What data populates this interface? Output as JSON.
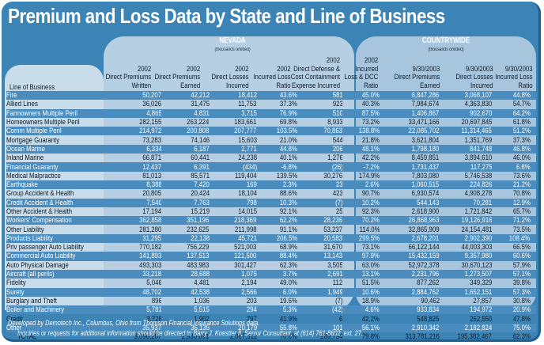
{
  "title": "Premium and Loss Data by State and Line of Business",
  "colors": {
    "frame": "#3b84b5",
    "band": "#4a8cbd",
    "nevada_panel": "#b6cfe2",
    "countrywide_panel": "#a7c5dc",
    "lob_panel": "#c9dcea"
  },
  "groups": {
    "nevada": {
      "label": "NEVADA",
      "sub": "(thousands omitted)"
    },
    "countrywide": {
      "label": "COUNTRYWIDE",
      "sub": "(thousands omitted)"
    }
  },
  "lob_header": "Line of Business",
  "columns": [
    "2002\nDirect Premiums\nWritten",
    "2002\nDirect Premiums\nEarned",
    "2002\nDirect Losses\nIncurred",
    "2002\nIncurred Loss\nRatio",
    "2002\nDirect Defense &\nCost Containment\nExpense Incurred",
    "2002\nIncurred\nLoss & DCC\nRatio",
    "9/30/2003\nDirect Premiums\nEarned",
    "9/30/2003\nDirect Losses\nIncurred",
    "9/30/2003\nIncurred Loss\nRatio"
  ],
  "chart_data": {
    "type": "table",
    "title": "Premium and Loss Data by State and Line of Business",
    "column_groups": [
      {
        "name": "NEVADA (thousands omitted)",
        "columns": [
          "2002 Direct Premiums Written",
          "2002 Direct Premiums Earned",
          "2002 Direct Losses Incurred",
          "2002 Incurred Loss Ratio",
          "2002 Direct Defense & Cost Containment Expense Incurred",
          "2002 Incurred Loss & DCC Ratio"
        ]
      },
      {
        "name": "COUNTRYWIDE (thousands omitted)",
        "columns": [
          "9/30/2003 Direct Premiums Earned",
          "9/30/2003 Direct Losses Incurred",
          "9/30/2003 Incurred Loss Ratio"
        ]
      }
    ],
    "rows": [
      {
        "lob": "Fire",
        "v": [
          "50,207",
          "42,212",
          "18,412",
          "43.6%",
          "581",
          "45.0%",
          "6,847,286",
          "3,068,107",
          "44.8%"
        ]
      },
      {
        "lob": "Allied Lines",
        "v": [
          "36,026",
          "31,475",
          "11,753",
          "37.3%",
          "923",
          "40.3%",
          "7,984,674",
          "4,363,830",
          "54.7%"
        ]
      },
      {
        "lob": "Farmowners Multiple Peril",
        "v": [
          "4,865",
          "4,831",
          "3,715",
          "76.9%",
          "510",
          "87.5%",
          "1,406,867",
          "902,670",
          "64.2%"
        ]
      },
      {
        "lob": "Homeowners Multiple Peril",
        "v": [
          "282,155",
          "263,224",
          "183,661",
          "69.8%",
          "8,933",
          "73.2%",
          "33,471,166",
          "20,697,845",
          "61.8%"
        ]
      },
      {
        "lob": "Comm Multiple Peril",
        "v": [
          "214,972",
          "200,808",
          "207,777",
          "103.5%",
          "70,863",
          "138.8%",
          "22,085,702",
          "11,314,465",
          "51.2%"
        ]
      },
      {
        "lob": "Mortgage Guaranty",
        "v": [
          "73,283",
          "74,146",
          "15,603",
          "21.0%",
          "544",
          "21.8%",
          "3,621,804",
          "1,351,769",
          "37.3%"
        ]
      },
      {
        "lob": "Ocean Marine",
        "v": [
          "6,334",
          "6,187",
          "2,771",
          "44.8%",
          "206",
          "48.1%",
          "1,798,180",
          "841,748",
          "46.8%"
        ]
      },
      {
        "lob": "Inland Marine",
        "v": [
          "66,871",
          "60,441",
          "24,238",
          "40.1%",
          "1,276",
          "42.2%",
          "8,459,851",
          "3,894,610",
          "46.0%"
        ]
      },
      {
        "lob": "Financial Guaranty",
        "v": [
          "12,437",
          "6,391",
          "(434)",
          "-6.8%",
          "(26)",
          "-7.2%",
          "1,731,437",
          "117,275",
          "6.8%"
        ]
      },
      {
        "lob": "Medical Malpractice",
        "v": [
          "81,013",
          "85,571",
          "119,404",
          "139.5%",
          "30,276",
          "174.9%",
          "7,803,080",
          "5,746,538",
          "73.6%"
        ]
      },
      {
        "lob": "Earthquake",
        "v": [
          "8,388",
          "7,420",
          "169",
          "2.3%",
          "23",
          "2.6%",
          "1,060,515",
          "224,826",
          "21.2%"
        ]
      },
      {
        "lob": "Group Accident & Health",
        "v": [
          "20,805",
          "20,424",
          "18,104",
          "88.6%",
          "423",
          "90.7%",
          "6,930,574",
          "4,908,278",
          "70.8%"
        ]
      },
      {
        "lob": "Credit Accident & Health",
        "v": [
          "7,540",
          "7,763",
          "798",
          "10.3%",
          "(7)",
          "10.2%",
          "544,143",
          "70,281",
          "12.9%"
        ]
      },
      {
        "lob": "Other Accident & Health",
        "v": [
          "17,194",
          "15,219",
          "14,015",
          "92.1%",
          "25",
          "92.3%",
          "2,618,900",
          "1,721,842",
          "65.7%"
        ]
      },
      {
        "lob": "Workers' Compensation",
        "v": [
          "362,858",
          "351,196",
          "218,369",
          "62.2%",
          "28,236",
          "70.2%",
          "26,868,963",
          "19,126,916",
          "71.2%"
        ]
      },
      {
        "lob": "Other Liability",
        "v": [
          "281,280",
          "232,625",
          "211,998",
          "91.1%",
          "53,237",
          "114.0%",
          "32,865,909",
          "24,154,481",
          "73.5%"
        ]
      },
      {
        "lob": "Products Liability",
        "v": [
          "31,295",
          "22,138",
          "45,721",
          "206.5%",
          "20,583",
          "299.5%",
          "2,678,201",
          "2,902,390",
          "108.4%"
        ]
      },
      {
        "lob": "Priv passenger Auto Liability",
        "v": [
          "770,182",
          "756,229",
          "521,003",
          "68.9%",
          "31,670",
          "73.1%",
          "66,122,144",
          "44,003,303",
          "66.5%"
        ]
      },
      {
        "lob": "Commercial Auto Liability",
        "v": [
          "141,893",
          "137,513",
          "121,500",
          "88.4%",
          "13,143",
          "97.9%",
          "15,432,159",
          "9,357,980",
          "60.6%"
        ]
      },
      {
        "lob": "Auto Physical Damage",
        "v": [
          "493,303",
          "483,983",
          "301,427",
          "62.3%",
          "3,505",
          "63.0%",
          "52,972,378",
          "30,670,123",
          "57.9%"
        ]
      },
      {
        "lob": "Aircraft (all perils)",
        "v": [
          "33,218",
          "28,688",
          "1,075",
          "3.7%",
          "2,691",
          "13.1%",
          "2,231,796",
          "1,273,507",
          "57.1%"
        ]
      },
      {
        "lob": "Fidelity",
        "v": [
          "5,046",
          "4,481",
          "2,194",
          "49.0%",
          "112",
          "51.5%",
          "877,262",
          "349,329",
          "39.8%"
        ]
      },
      {
        "lob": "Surety",
        "v": [
          "48,702",
          "42,538",
          "2,566",
          "6.0%",
          "1,949",
          "10.6%",
          "2,884,762",
          "1,652,151",
          "57.3%"
        ]
      },
      {
        "lob": "Burglary and Theft",
        "v": [
          "896",
          "1,036",
          "203",
          "19.6%",
          "(7)",
          "18.9%",
          "90,462",
          "27,857",
          "30.8%"
        ]
      },
      {
        "lob": "Boiler and Machinery",
        "v": [
          "5,781",
          "5,515",
          "294",
          "5.3%",
          "(42)",
          "4.6%",
          "933,834",
          "194,972",
          "20.9%"
        ]
      },
      {
        "lob": "Credit",
        "v": [
          "3,726",
          "1,902",
          "797",
          "41.9%",
          "6",
          "42.2%",
          "548,825",
          "262,550",
          "47.8%"
        ]
      },
      {
        "lob": "Other",
        "v": [
          "35,937",
          "36,135",
          "20,179",
          "55.8%",
          "101",
          "56.1%",
          "2,910,342",
          "2,182,824",
          "75.0%"
        ]
      }
    ],
    "total": {
      "lob": "TOTAL",
      "v": [
        "3,096,207",
        "2,930,091",
        "2,067,312",
        "70.6%",
        "269,734",
        "79.8%",
        "313,781,216",
        "195,382,467",
        "62.3%"
      ]
    }
  },
  "footer": {
    "line1": "Developed by Demotech Inc., Columbus, Ohio from Thomson Financial Insurance Solutions data.",
    "line2": "Inquiries or requests for additional information should be directed to Barry J. Koestler II, Senior Consultant, at (614) 761-8602, ext. 27."
  }
}
